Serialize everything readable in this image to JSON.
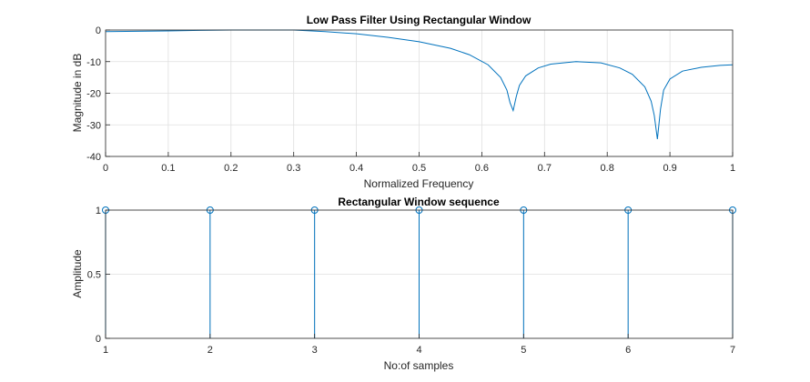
{
  "chart_data": [
    {
      "type": "line",
      "title": "Low Pass Filter Using Rectangular Window",
      "xlabel": "Normalized Frequency",
      "ylabel": "Magnitude in dB",
      "xlim": [
        0,
        1
      ],
      "ylim": [
        -40,
        0
      ],
      "xticks": [
        0,
        0.1,
        0.2,
        0.3,
        0.4,
        0.5,
        0.6,
        0.7,
        0.8,
        0.9,
        1
      ],
      "yticks": [
        0,
        -10,
        -20,
        -30,
        -40
      ],
      "grid": true,
      "series": [
        {
          "color": "#0072BD",
          "x": [
            0,
            0.05,
            0.1,
            0.15,
            0.2,
            0.25,
            0.3,
            0.35,
            0.4,
            0.45,
            0.5,
            0.55,
            0.58,
            0.61,
            0.63,
            0.64,
            0.645,
            0.65,
            0.655,
            0.66,
            0.67,
            0.69,
            0.71,
            0.75,
            0.79,
            0.82,
            0.84,
            0.86,
            0.87,
            0.875,
            0.88,
            0.885,
            0.89,
            0.9,
            0.92,
            0.95,
            0.98,
            1.0
          ],
          "y": [
            -0.5,
            -0.4,
            -0.3,
            -0.1,
            0.0,
            0.0,
            0.0,
            -0.5,
            -1.2,
            -2.3,
            -3.7,
            -5.8,
            -7.8,
            -11.0,
            -15.0,
            -19.0,
            -23.0,
            -25.5,
            -21.0,
            -17.5,
            -14.5,
            -12.0,
            -10.8,
            -10.0,
            -10.4,
            -12.0,
            -14.0,
            -18.0,
            -22.5,
            -27.0,
            -34.5,
            -25.0,
            -19.0,
            -15.5,
            -13.0,
            -11.8,
            -11.2,
            -11.0
          ]
        }
      ]
    },
    {
      "type": "stem",
      "title": "Rectangular Window sequence",
      "xlabel": "No:of samples",
      "ylabel": "Amplitude",
      "xlim": [
        1,
        7
      ],
      "ylim": [
        0,
        1
      ],
      "xticks": [
        1,
        2,
        3,
        4,
        5,
        6,
        7
      ],
      "yticks": [
        0,
        0.5,
        1
      ],
      "grid": true,
      "series": [
        {
          "color": "#0072BD",
          "x": [
            1,
            2,
            3,
            4,
            5,
            6,
            7
          ],
          "y": [
            1,
            1,
            1,
            1,
            1,
            1,
            1
          ]
        }
      ]
    }
  ]
}
